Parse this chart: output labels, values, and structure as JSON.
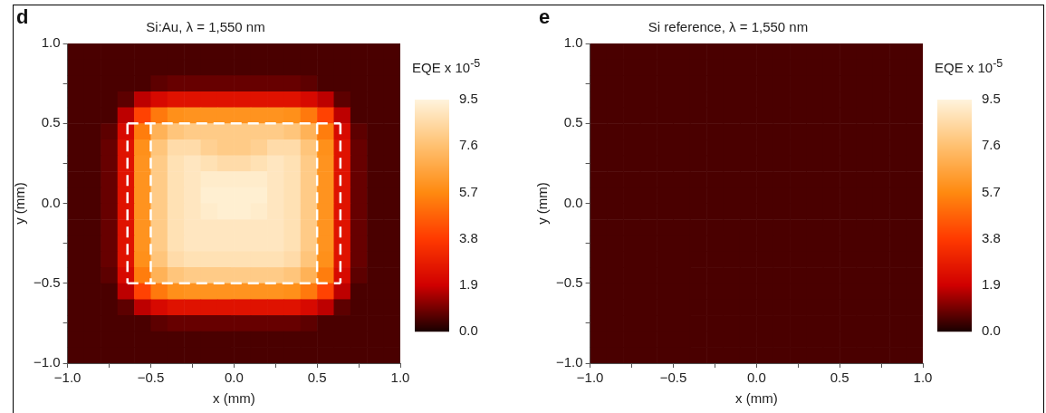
{
  "chart_data": [
    {
      "type": "heatmap",
      "title": "Si:Au, λ = 1,550 nm",
      "xlabel": "x (mm)",
      "ylabel": "y (mm)",
      "clabel": "EQE x 10$^{-5}$",
      "annotations": [
        "d"
      ],
      "x": [
        -0.95,
        -0.85,
        -0.75,
        -0.65,
        -0.55,
        -0.45,
        -0.35,
        -0.25,
        -0.15,
        -0.05,
        0.05,
        0.15,
        0.25,
        0.35,
        0.45,
        0.55,
        0.65,
        0.75,
        0.85,
        0.95
      ],
      "y": [
        0.95,
        0.85,
        0.75,
        0.65,
        0.55,
        0.45,
        0.35,
        0.25,
        0.15,
        0.05,
        -0.05,
        -0.15,
        -0.25,
        -0.35,
        -0.45,
        -0.55,
        -0.65,
        -0.75,
        -0.85,
        -0.95
      ],
      "xlim": [
        -1,
        1
      ],
      "ylim": [
        -1,
        1
      ],
      "xticks": [
        {
          "value": -1,
          "label": "−1.0"
        },
        {
          "value": -0.75,
          "label": null
        },
        {
          "value": -0.5,
          "label": "−0.5"
        },
        {
          "value": -0.25,
          "label": null
        },
        {
          "value": 0,
          "label": "0.0"
        },
        {
          "value": 0.25,
          "label": null
        },
        {
          "value": 0.5,
          "label": "0.5"
        },
        {
          "value": 0.75,
          "label": null
        },
        {
          "value": 1,
          "label": "1.0"
        }
      ],
      "yticks": [
        {
          "value": -1,
          "label": "−1.0"
        },
        {
          "value": -0.75,
          "label": null
        },
        {
          "value": -0.5,
          "label": "−0.5"
        },
        {
          "value": -0.25,
          "label": null
        },
        {
          "value": 0,
          "label": "0.0"
        },
        {
          "value": 0.25,
          "label": null
        },
        {
          "value": 0.5,
          "label": "0.5"
        },
        {
          "value": 0.75,
          "label": null
        },
        {
          "value": 1,
          "label": "1.0"
        }
      ],
      "clim": [
        0,
        9.5
      ],
      "cticks": [
        {
          "value": 0,
          "label": "0.0"
        },
        1.9,
        3.8,
        5.7,
        7.6,
        9.5
      ],
      "ref_lines": [
        {
          "axis": "x",
          "value": -0.64,
          "color": "#ffffff",
          "line_style": "dashed"
        },
        {
          "axis": "x",
          "value": -0.5,
          "color": "#ffffff",
          "line_style": "dashed"
        },
        {
          "axis": "x",
          "value": 0.5,
          "color": "#ffffff",
          "line_style": "dashed"
        },
        {
          "axis": "x",
          "value": 0.64,
          "color": "#ffffff",
          "line_style": "dashed"
        },
        {
          "axis": "y",
          "value": 0.5,
          "color": "#ffffff",
          "line_style": "dashed"
        },
        {
          "axis": "y",
          "value": -0.5,
          "color": "#ffffff",
          "line_style": "dashed"
        }
      ],
      "cells": [
        [
          0.5,
          0.5,
          0.5,
          0.5,
          0.5,
          0.5,
          0.5,
          0.5,
          0.5,
          0.5,
          0.5,
          0.5,
          0.5,
          0.5,
          0.5,
          0.5,
          0.5,
          0.5,
          0.5,
          0.5
        ],
        [
          0.5,
          0.5,
          0.5,
          0.5,
          0.5,
          0.5,
          0.5,
          0.5,
          0.5,
          0.5,
          0.5,
          0.5,
          0.5,
          0.5,
          0.5,
          0.5,
          0.5,
          0.5,
          0.5,
          0.5
        ],
        [
          0.5,
          0.5,
          0.5,
          0.5,
          0.5,
          0.7,
          0.8,
          0.8,
          0.8,
          0.8,
          0.8,
          0.8,
          0.8,
          0.8,
          0.7,
          0.5,
          0.5,
          0.5,
          0.5,
          0.5
        ],
        [
          0.5,
          0.5,
          0.5,
          0.7,
          1.7,
          2.2,
          2.5,
          2.5,
          2.5,
          2.5,
          2.5,
          2.5,
          2.5,
          2.5,
          2.2,
          1.7,
          0.7,
          0.5,
          0.5,
          0.5
        ],
        [
          0.5,
          0.5,
          0.5,
          1.7,
          4.0,
          5.3,
          5.9,
          6.0,
          6.0,
          6.0,
          6.0,
          6.0,
          6.0,
          5.9,
          5.3,
          4.0,
          1.7,
          0.5,
          0.5,
          0.5
        ],
        [
          0.5,
          0.5,
          0.7,
          2.2,
          5.4,
          7.1,
          7.8,
          8.0,
          8.0,
          8.0,
          8.0,
          8.0,
          8.0,
          7.8,
          7.1,
          5.4,
          2.2,
          0.7,
          0.5,
          0.5
        ],
        [
          0.5,
          0.5,
          0.8,
          2.5,
          5.9,
          7.8,
          8.6,
          8.6,
          8.2,
          8.0,
          8.0,
          8.2,
          8.6,
          8.6,
          7.8,
          5.9,
          2.5,
          0.8,
          0.5,
          0.5
        ],
        [
          0.5,
          0.5,
          0.8,
          2.5,
          6.0,
          8.0,
          8.8,
          9.0,
          8.8,
          8.6,
          8.6,
          8.8,
          9.0,
          8.8,
          8.0,
          6.0,
          2.5,
          0.8,
          0.5,
          0.5
        ],
        [
          0.5,
          0.5,
          0.8,
          2.5,
          6.0,
          8.0,
          8.8,
          9.0,
          9.2,
          9.2,
          9.2,
          9.2,
          9.0,
          8.8,
          8.0,
          6.0,
          2.5,
          0.8,
          0.5,
          0.5
        ],
        [
          0.5,
          0.5,
          0.8,
          2.5,
          6.0,
          8.0,
          8.8,
          9.0,
          9.3,
          9.3,
          9.3,
          9.3,
          9.0,
          8.8,
          8.0,
          6.0,
          2.5,
          0.8,
          0.5,
          0.5
        ],
        [
          0.5,
          0.5,
          0.8,
          2.5,
          6.0,
          8.0,
          8.8,
          9.0,
          9.2,
          9.3,
          9.3,
          9.2,
          9.0,
          8.8,
          8.0,
          6.0,
          2.5,
          0.8,
          0.5,
          0.5
        ],
        [
          0.5,
          0.5,
          0.8,
          2.5,
          6.0,
          8.0,
          8.8,
          9.0,
          9.0,
          9.0,
          9.0,
          9.0,
          9.0,
          8.8,
          8.0,
          6.0,
          2.5,
          0.8,
          0.5,
          0.5
        ],
        [
          0.5,
          0.5,
          0.8,
          2.5,
          6.0,
          8.0,
          8.8,
          9.0,
          9.0,
          9.0,
          9.0,
          9.0,
          9.0,
          8.8,
          8.0,
          6.0,
          2.5,
          0.8,
          0.5,
          0.5
        ],
        [
          0.5,
          0.5,
          0.8,
          2.5,
          5.9,
          7.8,
          8.6,
          8.8,
          8.8,
          8.8,
          8.8,
          8.8,
          8.8,
          8.6,
          7.8,
          5.9,
          2.5,
          0.8,
          0.5,
          0.5
        ],
        [
          0.5,
          0.5,
          0.7,
          2.2,
          5.4,
          7.1,
          7.8,
          8.0,
          8.0,
          8.0,
          8.0,
          8.0,
          8.0,
          7.8,
          7.1,
          5.4,
          2.2,
          0.7,
          0.5,
          0.5
        ],
        [
          0.5,
          0.5,
          0.5,
          1.7,
          4.0,
          5.3,
          5.9,
          6.0,
          6.0,
          6.0,
          6.0,
          6.0,
          6.0,
          5.9,
          5.3,
          4.0,
          1.7,
          0.5,
          0.5,
          0.5
        ],
        [
          0.5,
          0.5,
          0.5,
          0.7,
          1.7,
          2.2,
          2.5,
          2.5,
          2.5,
          2.5,
          2.5,
          2.5,
          2.5,
          2.5,
          2.2,
          1.7,
          0.7,
          0.5,
          0.5,
          0.5
        ],
        [
          0.5,
          0.5,
          0.5,
          0.5,
          0.5,
          0.7,
          0.8,
          0.8,
          0.8,
          0.8,
          0.8,
          0.8,
          0.8,
          0.8,
          0.7,
          0.5,
          0.5,
          0.5,
          0.5,
          0.5
        ],
        [
          0.5,
          0.5,
          0.5,
          0.5,
          0.5,
          0.5,
          0.5,
          0.5,
          0.5,
          0.5,
          0.5,
          0.5,
          0.5,
          0.5,
          0.5,
          0.5,
          0.5,
          0.5,
          0.5,
          0.5
        ],
        [
          0.5,
          0.5,
          0.5,
          0.5,
          0.5,
          0.5,
          0.5,
          0.5,
          0.5,
          0.5,
          0.5,
          0.5,
          0.5,
          0.5,
          0.5,
          0.5,
          0.5,
          0.5,
          0.5,
          0.5
        ]
      ]
    },
    {
      "type": "heatmap",
      "title": "Si reference, λ = 1,550 nm",
      "xlabel": "x (mm)",
      "ylabel": "y (mm)",
      "clabel": "EQE x 10$^{-5}$",
      "annotations": [
        "e"
      ],
      "x": [
        -0.95,
        -0.85,
        -0.75,
        -0.65,
        -0.55,
        -0.45,
        -0.35,
        -0.25,
        -0.15,
        -0.05,
        0.05,
        0.15,
        0.25,
        0.35,
        0.45,
        0.55,
        0.65,
        0.75,
        0.85,
        0.95
      ],
      "y": [
        0.95,
        0.85,
        0.75,
        0.65,
        0.55,
        0.45,
        0.35,
        0.25,
        0.15,
        0.05,
        -0.05,
        -0.15,
        -0.25,
        -0.35,
        -0.45,
        -0.55,
        -0.65,
        -0.75,
        -0.85,
        -0.95
      ],
      "xlim": [
        -1,
        1
      ],
      "ylim": [
        -1,
        1
      ],
      "xticks": [
        {
          "value": -1,
          "label": "−1.0"
        },
        {
          "value": -0.75,
          "label": null
        },
        {
          "value": -0.5,
          "label": "−0.5"
        },
        {
          "value": -0.25,
          "label": null
        },
        {
          "value": 0,
          "label": "0.0"
        },
        {
          "value": 0.25,
          "label": null
        },
        {
          "value": 0.5,
          "label": "0.5"
        },
        {
          "value": 0.75,
          "label": null
        },
        {
          "value": 1,
          "label": "1.0"
        }
      ],
      "yticks": [
        {
          "value": -1,
          "label": "−1.0"
        },
        {
          "value": -0.75,
          "label": null
        },
        {
          "value": -0.5,
          "label": "−0.5"
        },
        {
          "value": -0.25,
          "label": null
        },
        {
          "value": 0,
          "label": "0.0"
        },
        {
          "value": 0.25,
          "label": null
        },
        {
          "value": 0.5,
          "label": "0.5"
        },
        {
          "value": 0.75,
          "label": null
        },
        {
          "value": 1,
          "label": "1.0"
        }
      ],
      "clim": [
        0,
        9.5
      ],
      "cticks": [
        {
          "value": 0,
          "label": "0.0"
        },
        1.9,
        3.8,
        5.7,
        7.6,
        9.5
      ],
      "cells": [
        [
          0.5,
          0.5,
          0.5,
          0.5,
          0.5,
          0.5,
          0.5,
          0.5,
          0.5,
          0.5,
          0.5,
          0.5,
          0.5,
          0.5,
          0.5,
          0.5,
          0.5,
          0.5,
          0.5,
          0.5
        ],
        [
          0.5,
          0.5,
          0.5,
          0.5,
          0.5,
          0.5,
          0.5,
          0.5,
          0.5,
          0.5,
          0.5,
          0.5,
          0.5,
          0.5,
          0.5,
          0.5,
          0.5,
          0.5,
          0.5,
          0.5
        ],
        [
          0.5,
          0.5,
          0.5,
          0.5,
          0.5,
          0.5,
          0.5,
          0.5,
          0.5,
          0.5,
          0.5,
          0.5,
          0.5,
          0.5,
          0.5,
          0.5,
          0.5,
          0.5,
          0.5,
          0.5
        ],
        [
          0.5,
          0.5,
          0.5,
          0.5,
          0.5,
          0.5,
          0.5,
          0.5,
          0.5,
          0.5,
          0.5,
          0.5,
          0.5,
          0.5,
          0.5,
          0.5,
          0.5,
          0.5,
          0.5,
          0.5
        ],
        [
          0.5,
          0.5,
          0.5,
          0.5,
          0.5,
          0.5,
          0.5,
          0.5,
          0.5,
          0.5,
          0.5,
          0.5,
          0.5,
          0.5,
          0.5,
          0.5,
          0.5,
          0.5,
          0.5,
          0.5
        ],
        [
          0.5,
          0.5,
          0.5,
          0.5,
          0.5,
          0.5,
          0.5,
          0.5,
          0.5,
          0.5,
          0.5,
          0.5,
          0.5,
          0.5,
          0.5,
          0.5,
          0.5,
          0.5,
          0.5,
          0.5
        ],
        [
          0.5,
          0.5,
          0.5,
          0.5,
          0.5,
          0.5,
          0.5,
          0.5,
          0.5,
          0.5,
          0.5,
          0.5,
          0.5,
          0.5,
          0.5,
          0.5,
          0.5,
          0.5,
          0.5,
          0.5
        ],
        [
          0.5,
          0.5,
          0.5,
          0.5,
          0.5,
          0.5,
          0.5,
          0.5,
          0.5,
          0.5,
          0.5,
          0.5,
          0.5,
          0.5,
          0.5,
          0.5,
          0.5,
          0.5,
          0.5,
          0.5
        ],
        [
          0.5,
          0.5,
          0.5,
          0.5,
          0.5,
          0.5,
          0.5,
          0.5,
          0.5,
          0.5,
          0.5,
          0.5,
          0.5,
          0.5,
          0.5,
          0.5,
          0.5,
          0.5,
          0.5,
          0.5
        ],
        [
          0.5,
          0.5,
          0.5,
          0.5,
          0.5,
          0.5,
          0.5,
          0.5,
          0.5,
          0.5,
          0.5,
          0.5,
          0.5,
          0.5,
          0.5,
          0.5,
          0.5,
          0.5,
          0.5,
          0.5
        ],
        [
          0.5,
          0.5,
          0.5,
          0.5,
          0.5,
          0.5,
          0.5,
          0.5,
          0.5,
          0.5,
          0.5,
          0.5,
          0.5,
          0.5,
          0.5,
          0.5,
          0.5,
          0.5,
          0.5,
          0.5
        ],
        [
          0.5,
          0.5,
          0.5,
          0.5,
          0.5,
          0.5,
          0.5,
          0.5,
          0.5,
          0.5,
          0.5,
          0.5,
          0.5,
          0.5,
          0.5,
          0.5,
          0.5,
          0.5,
          0.5,
          0.5
        ],
        [
          0.5,
          0.5,
          0.5,
          0.5,
          0.5,
          0.5,
          0.5,
          0.5,
          0.5,
          0.5,
          0.5,
          0.5,
          0.5,
          0.5,
          0.5,
          0.5,
          0.5,
          0.5,
          0.5,
          0.5
        ],
        [
          0.5,
          0.5,
          0.5,
          0.5,
          0.5,
          0.5,
          0.5,
          0.5,
          0.5,
          0.5,
          0.5,
          0.5,
          0.5,
          0.5,
          0.5,
          0.5,
          0.5,
          0.5,
          0.5,
          0.5
        ],
        [
          0.5,
          0.5,
          0.5,
          0.5,
          0.5,
          0.5,
          0.5,
          0.5,
          0.5,
          0.5,
          0.5,
          0.5,
          0.5,
          0.5,
          0.5,
          0.5,
          0.5,
          0.5,
          0.5,
          0.5
        ],
        [
          0.5,
          0.5,
          0.5,
          0.5,
          0.5,
          0.5,
          0.5,
          0.5,
          0.5,
          0.5,
          0.5,
          0.5,
          0.5,
          0.5,
          0.5,
          0.5,
          0.5,
          0.5,
          0.5,
          0.5
        ],
        [
          0.5,
          0.5,
          0.5,
          0.5,
          0.5,
          0.5,
          0.5,
          0.5,
          0.5,
          0.5,
          0.5,
          0.5,
          0.5,
          0.5,
          0.5,
          0.5,
          0.5,
          0.5,
          0.5,
          0.5
        ],
        [
          0.5,
          0.5,
          0.5,
          0.5,
          0.5,
          0.5,
          0.5,
          0.5,
          0.5,
          0.5,
          0.5,
          0.5,
          0.5,
          0.5,
          0.5,
          0.5,
          0.5,
          0.5,
          0.5,
          0.5
        ],
        [
          0.5,
          0.5,
          0.5,
          0.5,
          0.5,
          0.5,
          0.5,
          0.5,
          0.5,
          0.5,
          0.5,
          0.5,
          0.5,
          0.5,
          0.5,
          0.5,
          0.5,
          0.5,
          0.5,
          0.5
        ],
        [
          0.5,
          0.5,
          0.5,
          0.5,
          0.5,
          0.5,
          0.5,
          0.5,
          0.5,
          0.5,
          0.5,
          0.5,
          0.5,
          0.5,
          0.5,
          0.5,
          0.5,
          0.5,
          0.5,
          0.5
        ]
      ]
    }
  ]
}
